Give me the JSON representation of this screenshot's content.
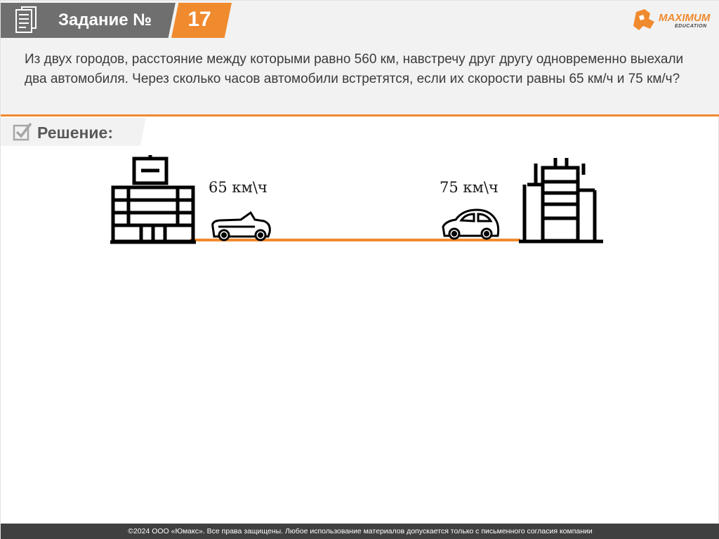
{
  "header": {
    "title": "Задание №",
    "number": "17"
  },
  "logo": {
    "name": "MAXIMUM",
    "sub": "EDUCATION"
  },
  "problem": {
    "text": "Из двух городов, расстояние между которыми равно 560 км, навстречу друг другу одновременно выехали два автомобиля. Через сколько часов автомобили встретятся, если их скорости равны 65 км/ч и 75 км/ч?"
  },
  "solution": {
    "label": "Решение:"
  },
  "scene": {
    "left_speed": "65 км\\ч",
    "right_speed": "75 км\\ч",
    "road_color": "#f08a2e"
  },
  "footer": {
    "text": "©2024 ООО «Юмакс». Все права защищены. Любое использование материалов допускается только с письменного согласия компании"
  },
  "colors": {
    "accent": "#f08a2e",
    "tab": "#6f6f6f",
    "footer": "#404040"
  }
}
